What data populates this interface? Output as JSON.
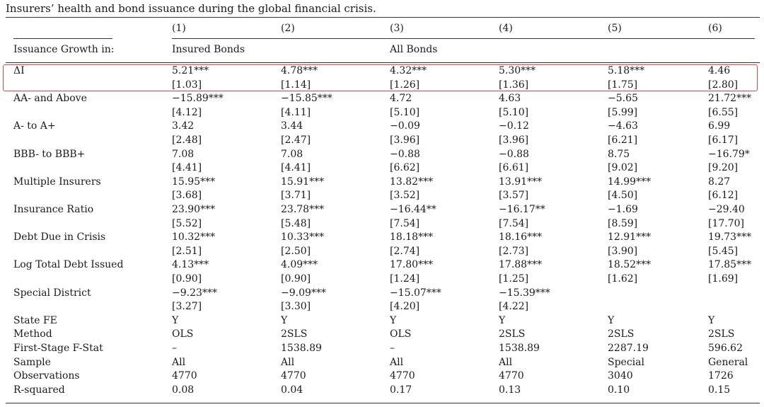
{
  "caption": "Insurers’ health and bond issuance during the global financial crisis.",
  "column_numbers": [
    "(1)",
    "(2)",
    "(3)",
    "(4)",
    "(5)",
    "(6)"
  ],
  "header": {
    "row_label": "Issuance Growth in:",
    "group_insured": "Insured Bonds",
    "group_all": "All Bonds"
  },
  "rows": [
    {
      "label": "ΔI",
      "coef": [
        "5.21***",
        "4.78***",
        "4.32***",
        "5.30***",
        "5.18***",
        "4.46"
      ],
      "se": [
        "[1.03]",
        "[1.14]",
        "[1.26]",
        "[1.36]",
        "[1.75]",
        "[2.80]"
      ]
    },
    {
      "label": "AA- and Above",
      "coef": [
        "−15.89***",
        "−15.85***",
        "4.72",
        "4.63",
        "−5.65",
        "21.72***"
      ],
      "se": [
        "[4.12]",
        "[4.11]",
        "[5.10]",
        "[5.10]",
        "[5.99]",
        "[6.55]"
      ]
    },
    {
      "label": "A- to A+",
      "coef": [
        "3.42",
        "3.44",
        "−0.09",
        "−0.12",
        "−4.63",
        "6.99"
      ],
      "se": [
        "[2.48]",
        "[2.47]",
        "[3.96]",
        "[3.96]",
        "[6.21]",
        "[6.17]"
      ]
    },
    {
      "label": "BBB- to BBB+",
      "coef": [
        "7.08",
        "7.08",
        "−0.88",
        "−0.88",
        "8.75",
        "−16.79*"
      ],
      "se": [
        "[4.41]",
        "[4.41]",
        "[6.62]",
        "[6.61]",
        "[9.02]",
        "[9.20]"
      ]
    },
    {
      "label": "Multiple Insurers",
      "coef": [
        "15.95***",
        "15.91***",
        "13.82***",
        "13.91***",
        "14.99***",
        "8.27"
      ],
      "se": [
        "[3.68]",
        "[3.71]",
        "[3.52]",
        "[3.57]",
        "[4.50]",
        "[6.12]"
      ]
    },
    {
      "label": "Insurance Ratio",
      "coef": [
        "23.90***",
        "23.78***",
        "−16.44**",
        "−16.17**",
        "−1.69",
        "−29.40"
      ],
      "se": [
        "[5.52]",
        "[5.48]",
        "[7.54]",
        "[7.54]",
        "[8.59]",
        "[17.70]"
      ]
    },
    {
      "label": "Debt Due in Crisis",
      "coef": [
        "10.32***",
        "10.33***",
        "18.18***",
        "18.16***",
        "12.91***",
        "19.73***"
      ],
      "se": [
        "[2.51]",
        "[2.50]",
        "[2.74]",
        "[2.73]",
        "[3.90]",
        "[5.45]"
      ]
    },
    {
      "label": "Log Total Debt Issued",
      "coef": [
        "4.13***",
        "4.09***",
        "17.80***",
        "17.88***",
        "18.52***",
        "17.85***"
      ],
      "se": [
        "[0.90]",
        "[0.90]",
        "[1.24]",
        "[1.25]",
        "[1.62]",
        "[1.69]"
      ]
    },
    {
      "label": "Special District",
      "coef": [
        "−9.23***",
        "−9.09***",
        "−15.07***",
        "−15.39***",
        "",
        ""
      ],
      "se": [
        "[3.27]",
        "[3.30]",
        "[4.20]",
        "[4.22]",
        "",
        ""
      ]
    }
  ],
  "stats": [
    {
      "label": "State FE",
      "values": [
        "Y",
        "Y",
        "Y",
        "Y",
        "Y",
        "Y"
      ]
    },
    {
      "label": "Method",
      "values": [
        "OLS",
        "2SLS",
        "OLS",
        "2SLS",
        "2SLS",
        "2SLS"
      ]
    },
    {
      "label": "First-Stage F-Stat",
      "values": [
        "–",
        "1538.89",
        "–",
        "1538.89",
        "2287.19",
        "596.62"
      ]
    },
    {
      "label": "Sample",
      "values": [
        "All",
        "All",
        "All",
        "All",
        "Special",
        "General"
      ]
    },
    {
      "label": "Observations",
      "values": [
        "4770",
        "4770",
        "4770",
        "4770",
        "3040",
        "1726"
      ]
    },
    {
      "label": "R-squared",
      "values": [
        "0.08",
        "0.04",
        "0.17",
        "0.13",
        "0.10",
        "0.15"
      ]
    }
  ],
  "highlight": {
    "row_label": "ΔI",
    "color": "#e04848"
  }
}
